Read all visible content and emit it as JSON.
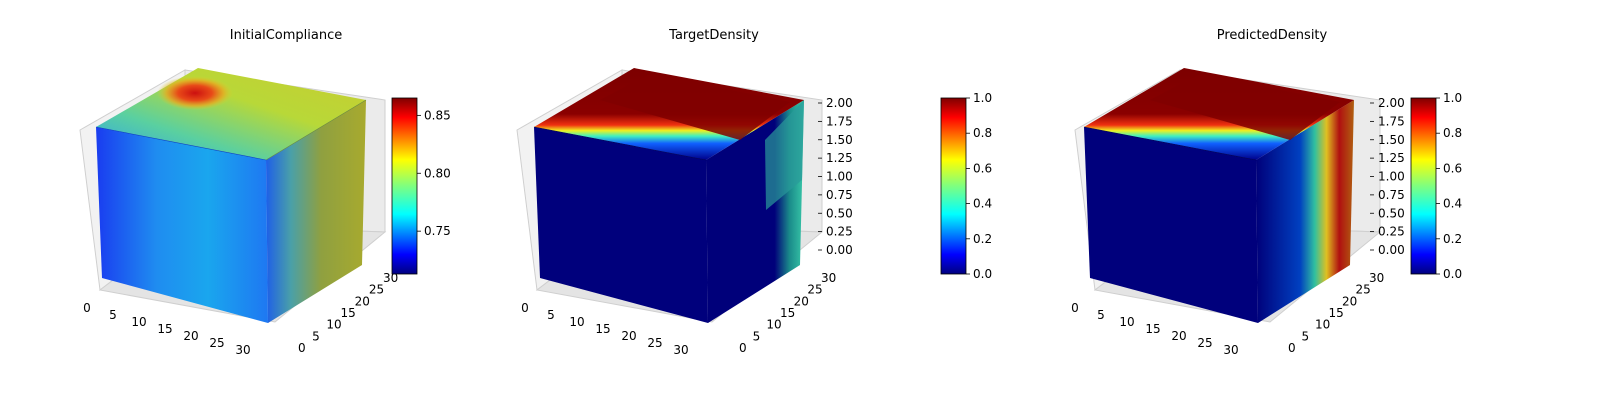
{
  "chart_data": [
    {
      "type": "3d-voxel",
      "title": "InitialCompliance",
      "x_ticks": [
        "0",
        "5",
        "10",
        "15",
        "20",
        "25",
        "30"
      ],
      "y_ticks": [
        "0",
        "5",
        "10",
        "15",
        "20",
        "25",
        "30"
      ],
      "z_ticks": [],
      "xlim": [
        0,
        32
      ],
      "ylim": [
        0,
        32
      ],
      "zlim": [
        0,
        2
      ],
      "colorbar": {
        "cmap": "jet",
        "ticks": [
          "0.75",
          "0.80",
          "0.85"
        ],
        "tick_values": [
          0.75,
          0.8,
          0.85
        ],
        "range": [
          0.713,
          0.865
        ]
      },
      "faces": {
        "top": "warm-hot-spot-back-left",
        "front": "blue",
        "side": "yellow-green"
      }
    },
    {
      "type": "3d-voxel",
      "title": "TargetDensity",
      "x_ticks": [
        "0",
        "5",
        "10",
        "15",
        "20",
        "25",
        "30"
      ],
      "y_ticks": [
        "0",
        "5",
        "10",
        "15",
        "20",
        "25",
        "30"
      ],
      "z_ticks": [
        "0.00",
        "0.25",
        "0.50",
        "0.75",
        "1.00",
        "1.25",
        "1.50",
        "1.75",
        "2.00"
      ],
      "xlim": [
        0,
        32
      ],
      "ylim": [
        0,
        32
      ],
      "zlim": [
        0,
        2
      ],
      "colorbar": {
        "cmap": "jet",
        "ticks": [
          "0.0",
          "0.2",
          "0.4",
          "0.6",
          "0.8",
          "1.0"
        ],
        "tick_values": [
          0,
          0.2,
          0.4,
          0.6,
          0.8,
          1.0
        ],
        "range": [
          0,
          1
        ]
      },
      "faces": {
        "top": "dense-top-layer",
        "front": "void",
        "side": "partial-upper"
      }
    },
    {
      "type": "3d-voxel",
      "title": "PredictedDensity",
      "x_ticks": [
        "0",
        "5",
        "10",
        "15",
        "20",
        "25",
        "30"
      ],
      "y_ticks": [
        "0",
        "5",
        "10",
        "15",
        "20",
        "25",
        "30"
      ],
      "z_ticks": [
        "0.00",
        "0.25",
        "0.50",
        "0.75",
        "1.00",
        "1.25",
        "1.50",
        "1.75",
        "2.00"
      ],
      "xlim": [
        0,
        32
      ],
      "ylim": [
        0,
        32
      ],
      "zlim": [
        0,
        2
      ],
      "colorbar": {
        "cmap": "jet",
        "ticks": [
          "0.0",
          "0.2",
          "0.4",
          "0.6",
          "0.8",
          "1.0"
        ],
        "tick_values": [
          0,
          0.2,
          0.4,
          0.6,
          0.8,
          1.0
        ],
        "range": [
          0,
          1
        ]
      },
      "faces": {
        "top": "dense-top-layer",
        "front": "void",
        "side": "dense-right-edge"
      }
    }
  ]
}
